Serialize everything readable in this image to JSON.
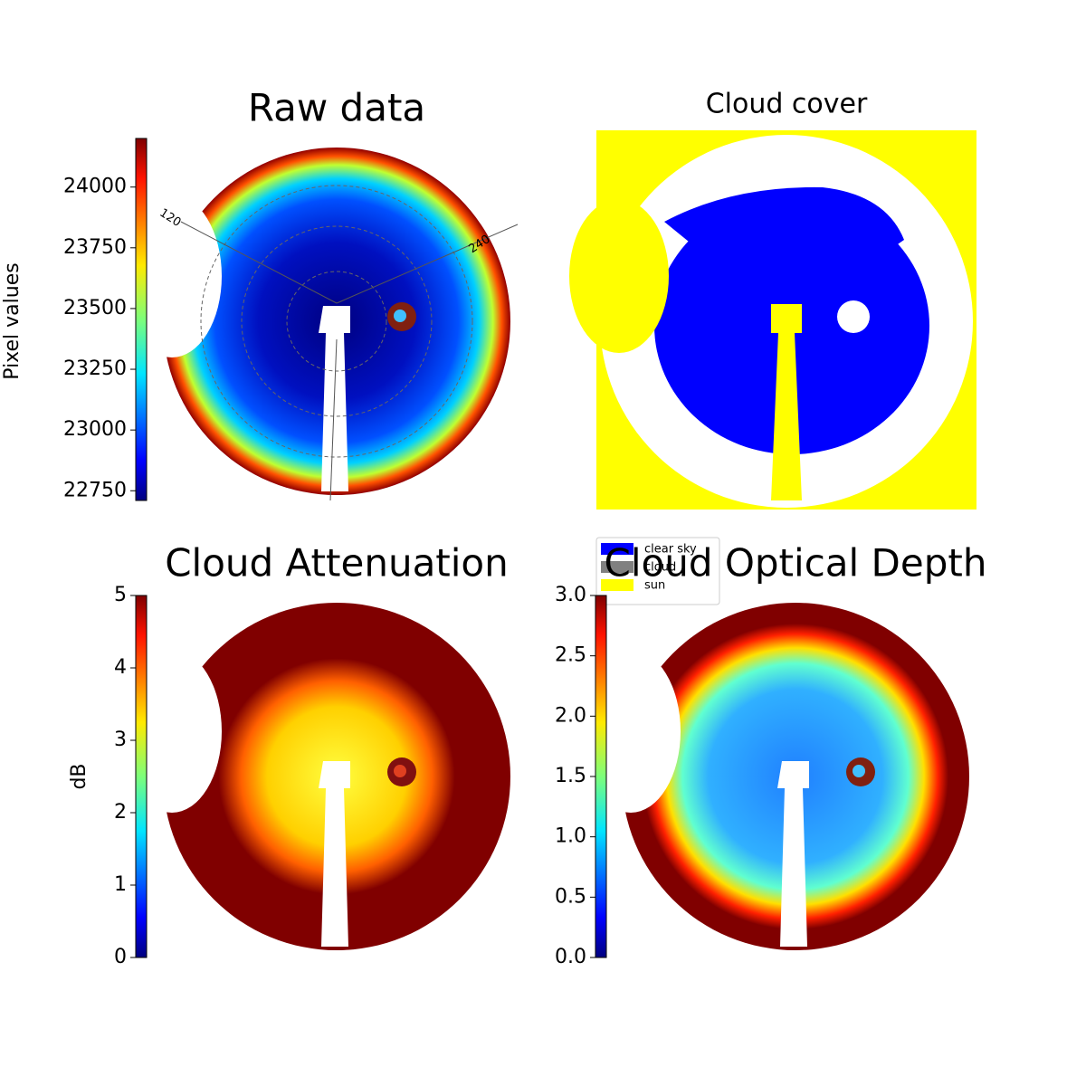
{
  "chart_data": [
    {
      "type": "image",
      "title": "Raw data",
      "colorbar_label": "Pixel values",
      "colormap": "jet",
      "ylim": [
        22710,
        24200
      ],
      "yticks": [
        22750,
        23000,
        23250,
        23500,
        23750,
        24000
      ],
      "annotations": [
        "120",
        "240"
      ]
    },
    {
      "type": "image",
      "title": "Cloud cover",
      "legend": [
        {
          "name": "clear sky",
          "color": "#0000ff"
        },
        {
          "name": "cloud",
          "color": "#808080"
        },
        {
          "name": "sun",
          "color": "#ffff00"
        }
      ]
    },
    {
      "type": "image",
      "title": "Cloud Attenuation",
      "colorbar_label": "dB",
      "colormap": "jet",
      "ylim": [
        0,
        5
      ],
      "yticks": [
        0,
        1,
        2,
        3,
        4,
        5
      ]
    },
    {
      "type": "image",
      "title": "Cloud Optical Depth",
      "colormap": "jet",
      "ylim": [
        0,
        3
      ],
      "yticks": [
        {
          "value": 0,
          "label": "0.0"
        },
        0.5,
        {
          "value": 1,
          "label": "1.0"
        },
        1.5,
        {
          "value": 2,
          "label": "2.0"
        },
        2.5,
        {
          "value": 3,
          "label": "3.0"
        }
      ]
    }
  ]
}
